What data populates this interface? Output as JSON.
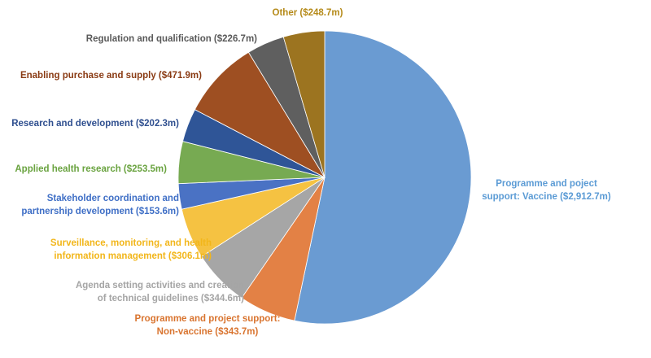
{
  "chart_data": {
    "type": "pie",
    "start_angle_deg": 0,
    "direction": "clockwise",
    "legend": "none",
    "slices": [
      {
        "name": "Programme and project support: Vaccine",
        "value": 2912.7,
        "color": "#6a9bd2",
        "label_lines": [
          "Programme and poject",
          "support: Vaccine ($2,912.7m)"
        ]
      },
      {
        "name": "Programme and project support: Non-vaccine",
        "value": 343.7,
        "color": "#e38145",
        "label_lines": [
          "Programme and project support:",
          "Non-vaccine ($343.7m)"
        ]
      },
      {
        "name": "Agenda setting activities and creation of technical guidelines",
        "value": 344.6,
        "color": "#a6a6a6",
        "label_lines": [
          "Agenda setting activities and creation",
          "of technical guidelines ($344.6m)"
        ]
      },
      {
        "name": "Surveillance, monitoring, and health information management",
        "value": 306.1,
        "color": "#f5c242",
        "label_lines": [
          "Surveillance, monitoring, and health",
          "information management ($306.1m)"
        ]
      },
      {
        "name": "Stakeholder coordination and partnership development",
        "value": 153.6,
        "color": "#4a72c4",
        "label_lines": [
          "Stakeholder coordination and",
          "partnership development ($153.6m)"
        ]
      },
      {
        "name": "Applied health research",
        "value": 253.5,
        "color": "#77aa52",
        "label_lines": [
          "Applied health research ($253.5m)"
        ]
      },
      {
        "name": "Research and development",
        "value": 202.3,
        "color": "#2f5597",
        "label_lines": [
          "Research and development ($202.3m)"
        ]
      },
      {
        "name": "Enabling purchase and supply",
        "value": 471.9,
        "color": "#9e4f22",
        "label_lines": [
          "Enabling purchase and supply ($471.9m)"
        ]
      },
      {
        "name": "Regulation and qualification",
        "value": 226.7,
        "color": "#5f5f5f",
        "label_lines": [
          "Regulation and qualification ($226.7m)"
        ]
      },
      {
        "name": "Other",
        "value": 248.7,
        "color": "#9c7420",
        "label_lines": [
          "Other ($248.7m)"
        ]
      }
    ],
    "label_colors": [
      "#5b9bd5",
      "#d9742f",
      "#a5a5a5",
      "#f2b61a",
      "#3f6fc6",
      "#6aa340",
      "#2f4f8f",
      "#8a3b14",
      "#595959",
      "#b58a19"
    ]
  }
}
